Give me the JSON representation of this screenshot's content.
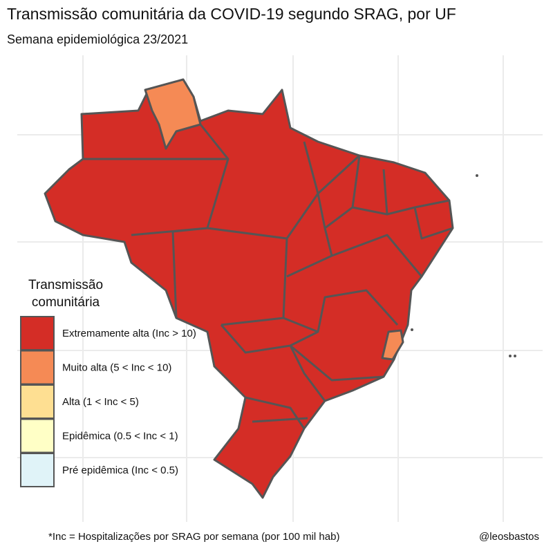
{
  "title": "Transmissão comunitária da COVID-19 segundo SRAG, por UF",
  "subtitle": "Semana epidemiológica 23/2021",
  "legend": {
    "title_lines": [
      "Transmissão",
      "comunitária"
    ],
    "items": [
      {
        "label": "Extremamente alta (Inc > 10)",
        "color": "#d42d26"
      },
      {
        "label": "Muito alta (5 < Inc < 10)",
        "color": "#f58a55"
      },
      {
        "label": "Alta (1 < Inc < 5)",
        "color": "#fedf92"
      },
      {
        "label": "Epidêmica (0.5 < Inc < 1)",
        "color": "#ffffc6"
      },
      {
        "label": "Pré epidêmica (Inc < 0.5)",
        "color": "#e0f3f8"
      }
    ]
  },
  "footnote": "*Inc = Hospitalizações por SRAG por semana (por 100 mil hab)",
  "credit": "@leosbastos"
}
